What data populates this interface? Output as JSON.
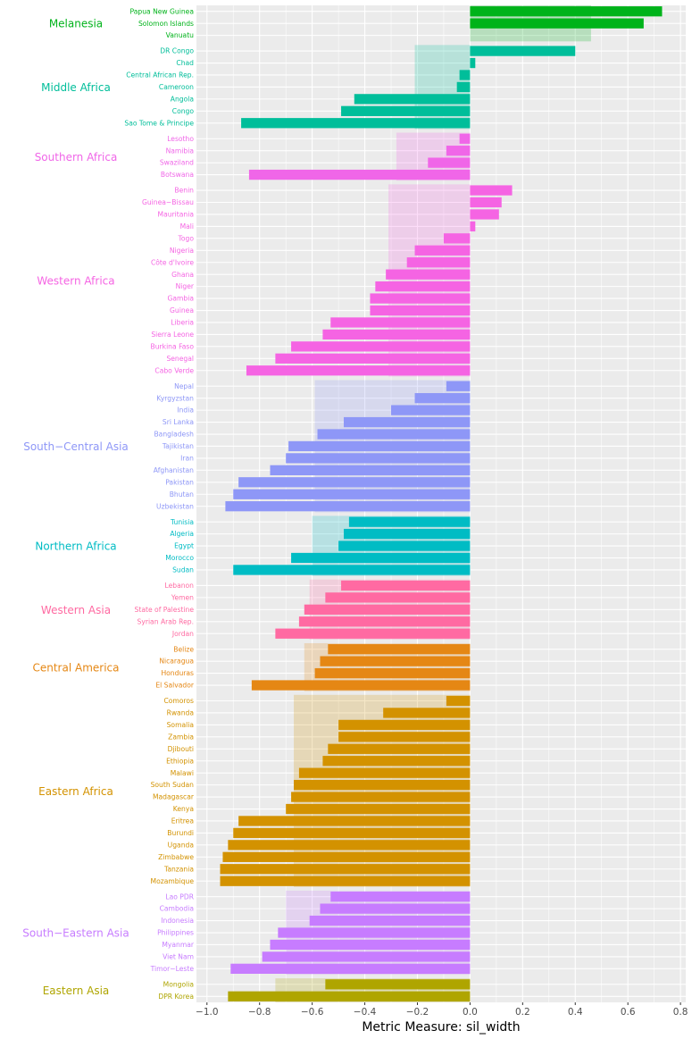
{
  "chart_data": {
    "type": "bar",
    "orientation": "horizontal",
    "xlabel": "Metric Measure: sil_width",
    "ylabel": "",
    "xlim": [
      -1.04,
      0.82
    ],
    "xticks": [
      -1.0,
      -0.8,
      -0.6,
      -0.4,
      -0.2,
      0.0,
      0.2,
      0.4,
      0.6,
      0.8
    ],
    "xtick_labels": [
      "−1.0",
      "−0.8",
      "−0.6",
      "−0.4",
      "−0.2",
      "0.0",
      "0.2",
      "0.4",
      "0.6",
      "0.8"
    ],
    "grid": true,
    "groups": [
      {
        "name": "Melanesia",
        "color": "#00B31A",
        "mean": 0.46,
        "items": [
          {
            "label": "Papua New Guinea",
            "value": 0.73
          },
          {
            "label": "Solomon Islands",
            "value": 0.66
          },
          {
            "label": "Vanuatu",
            "value": 0.0
          }
        ]
      },
      {
        "name": "Middle Africa",
        "color": "#00BE9A",
        "mean": -0.21,
        "items": [
          {
            "label": "DR Congo",
            "value": 0.4
          },
          {
            "label": "Chad",
            "value": 0.02
          },
          {
            "label": "Central African Rep.",
            "value": -0.04
          },
          {
            "label": "Cameroon",
            "value": -0.05
          },
          {
            "label": "Angola",
            "value": -0.44
          },
          {
            "label": "Congo",
            "value": -0.49
          },
          {
            "label": "Sao Tome & Principe",
            "value": -0.87
          }
        ]
      },
      {
        "name": "Southern Africa",
        "color": "#F066E8",
        "mean": -0.28,
        "items": [
          {
            "label": "Lesotho",
            "value": -0.04
          },
          {
            "label": "Namibia",
            "value": -0.09
          },
          {
            "label": "Swaziland",
            "value": -0.16
          },
          {
            "label": "Botswana",
            "value": -0.84
          }
        ]
      },
      {
        "name": "Western Africa",
        "color": "#F564E3",
        "mean": -0.31,
        "items": [
          {
            "label": "Benin",
            "value": 0.16
          },
          {
            "label": "Guinea−Bissau",
            "value": 0.12
          },
          {
            "label": "Mauritania",
            "value": 0.11
          },
          {
            "label": "Mali",
            "value": 0.02
          },
          {
            "label": "Togo",
            "value": -0.1
          },
          {
            "label": "Nigeria",
            "value": -0.21
          },
          {
            "label": "Côte d'Ivoire",
            "value": -0.24
          },
          {
            "label": "Ghana",
            "value": -0.32
          },
          {
            "label": "Niger",
            "value": -0.36
          },
          {
            "label": "Gambia",
            "value": -0.38
          },
          {
            "label": "Guinea",
            "value": -0.38
          },
          {
            "label": "Liberia",
            "value": -0.53
          },
          {
            "label": "Sierra Leone",
            "value": -0.56
          },
          {
            "label": "Burkina Faso",
            "value": -0.68
          },
          {
            "label": "Senegal",
            "value": -0.74
          },
          {
            "label": "Cabo Verde",
            "value": -0.85
          }
        ]
      },
      {
        "name": "South−Central Asia",
        "color": "#8E97F7",
        "mean": -0.59,
        "items": [
          {
            "label": "Nepal",
            "value": -0.09
          },
          {
            "label": "Kyrgyzstan",
            "value": -0.21
          },
          {
            "label": "India",
            "value": -0.3
          },
          {
            "label": "Sri Lanka",
            "value": -0.48
          },
          {
            "label": "Bangladesh",
            "value": -0.58
          },
          {
            "label": "Tajikistan",
            "value": -0.69
          },
          {
            "label": "Iran",
            "value": -0.7
          },
          {
            "label": "Afghanistan",
            "value": -0.76
          },
          {
            "label": "Pakistan",
            "value": -0.88
          },
          {
            "label": "Bhutan",
            "value": -0.9
          },
          {
            "label": "Uzbekistan",
            "value": -0.93
          }
        ]
      },
      {
        "name": "Northern Africa",
        "color": "#00BCC4",
        "mean": -0.6,
        "items": [
          {
            "label": "Tunisia",
            "value": -0.46
          },
          {
            "label": "Algeria",
            "value": -0.48
          },
          {
            "label": "Egypt",
            "value": -0.5
          },
          {
            "label": "Morocco",
            "value": -0.68
          },
          {
            "label": "Sudan",
            "value": -0.9
          }
        ]
      },
      {
        "name": "Western Asia",
        "color": "#FF6AA2",
        "mean": -0.61,
        "items": [
          {
            "label": "Lebanon",
            "value": -0.49
          },
          {
            "label": "Yemen",
            "value": -0.55
          },
          {
            "label": "State of Palestine",
            "value": -0.63
          },
          {
            "label": "Syrian Arab Rep.",
            "value": -0.65
          },
          {
            "label": "Jordan",
            "value": -0.74
          }
        ]
      },
      {
        "name": "Central America",
        "color": "#E58714",
        "mean": -0.63,
        "items": [
          {
            "label": "Belize",
            "value": -0.54
          },
          {
            "label": "Nicaragua",
            "value": -0.57
          },
          {
            "label": "Honduras",
            "value": -0.59
          },
          {
            "label": "El Salvador",
            "value": -0.83
          }
        ]
      },
      {
        "name": "Eastern Africa",
        "color": "#D39200",
        "mean": -0.67,
        "items": [
          {
            "label": "Comoros",
            "value": -0.09
          },
          {
            "label": "Rwanda",
            "value": -0.33
          },
          {
            "label": "Somalia",
            "value": -0.5
          },
          {
            "label": "Zambia",
            "value": -0.5
          },
          {
            "label": "Djibouti",
            "value": -0.54
          },
          {
            "label": "Ethiopia",
            "value": -0.56
          },
          {
            "label": "Malawi",
            "value": -0.65
          },
          {
            "label": "South Sudan",
            "value": -0.67
          },
          {
            "label": "Madagascar",
            "value": -0.68
          },
          {
            "label": "Kenya",
            "value": -0.7
          },
          {
            "label": "Eritrea",
            "value": -0.88
          },
          {
            "label": "Burundi",
            "value": -0.9
          },
          {
            "label": "Uganda",
            "value": -0.92
          },
          {
            "label": "Zimbabwe",
            "value": -0.94
          },
          {
            "label": "Tanzania",
            "value": -0.95
          },
          {
            "label": "Mozambique",
            "value": -0.95
          }
        ]
      },
      {
        "name": "South−Eastern Asia",
        "color": "#C77CFF",
        "mean": -0.7,
        "items": [
          {
            "label": "Lao PDR",
            "value": -0.53
          },
          {
            "label": "Cambodia",
            "value": -0.57
          },
          {
            "label": "Indonesia",
            "value": -0.61
          },
          {
            "label": "Philippines",
            "value": -0.73
          },
          {
            "label": "Myanmar",
            "value": -0.76
          },
          {
            "label": "Viet Nam",
            "value": -0.79
          },
          {
            "label": "Timor−Leste",
            "value": -0.91
          }
        ]
      },
      {
        "name": "Eastern Asia",
        "color": "#AFA500",
        "mean": -0.74,
        "items": [
          {
            "label": "Mongolia",
            "value": -0.55
          },
          {
            "label": "DPR Korea",
            "value": -0.92
          }
        ]
      }
    ]
  }
}
